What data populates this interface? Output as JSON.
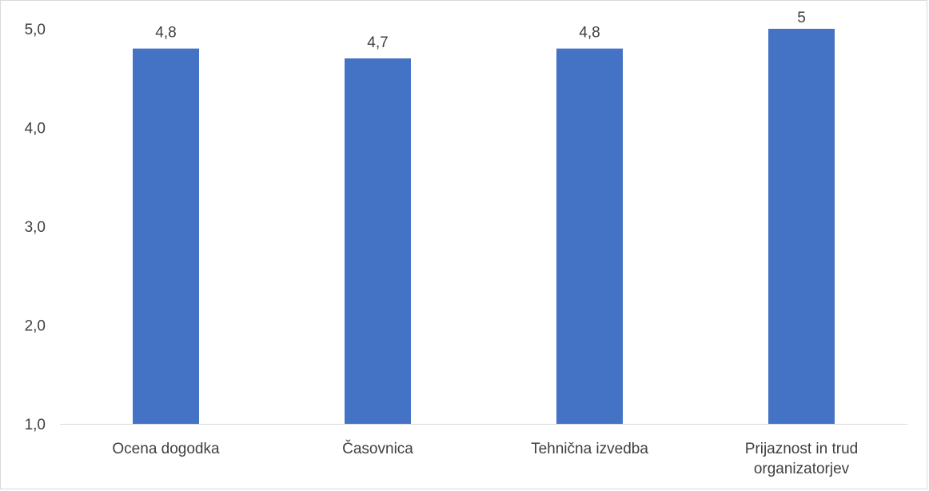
{
  "chart_data": {
    "type": "bar",
    "title": "",
    "xlabel": "",
    "ylabel": "",
    "categories": [
      [
        "Ocena dogodka"
      ],
      [
        "Časovnica"
      ],
      [
        "Tehnična izvedba"
      ],
      [
        "Prijaznost in trud",
        "organizatorjev"
      ]
    ],
    "values": [
      4.8,
      4.7,
      4.8,
      5
    ],
    "data_labels": [
      "4,8",
      "4,7",
      "4,8",
      "5"
    ],
    "ylim": [
      1,
      5
    ],
    "yticks": [
      1,
      2,
      3,
      4,
      5
    ],
    "ytick_labels": [
      "1,0",
      "2,0",
      "3,0",
      "4,0",
      "5,0"
    ],
    "grid": false,
    "legend": "none",
    "colors": {
      "bar": "#4472C4",
      "axis": "#d9d9d9",
      "text": "#404040"
    }
  }
}
